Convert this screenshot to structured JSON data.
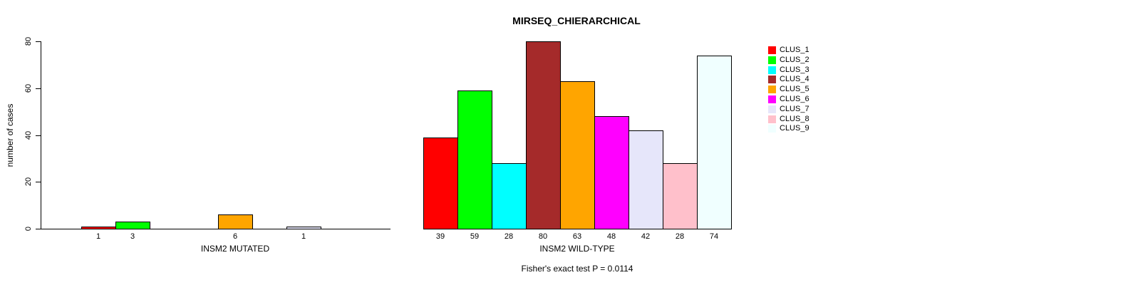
{
  "chart_data": {
    "type": "bar",
    "title": "MIRSEQ_CHIERARCHICAL",
    "ylabel": "number of cases",
    "ylim": [
      0,
      80
    ],
    "yticks": [
      0,
      20,
      40,
      60,
      80
    ],
    "grid": false,
    "legend_position": "right",
    "categories": [
      "CLUS_1",
      "CLUS_2",
      "CLUS_3",
      "CLUS_4",
      "CLUS_5",
      "CLUS_6",
      "CLUS_7",
      "CLUS_8",
      "CLUS_9"
    ],
    "colors": [
      "#FF0000",
      "#00FF00",
      "#00FFFF",
      "#A52A2A",
      "#FFA500",
      "#FF00FF",
      "#E6E6FA",
      "#FFC0CB",
      "#F0FFFF"
    ],
    "groups": [
      {
        "xlabel": "INSM2 MUTATED",
        "values": [
          1,
          3,
          0,
          0,
          6,
          0,
          1,
          0,
          0
        ]
      },
      {
        "xlabel": "INSM2 WILD-TYPE",
        "values": [
          39,
          59,
          28,
          80,
          63,
          48,
          42,
          28,
          74
        ]
      }
    ],
    "annotation": "Fisher's exact test P = 0.0114"
  }
}
